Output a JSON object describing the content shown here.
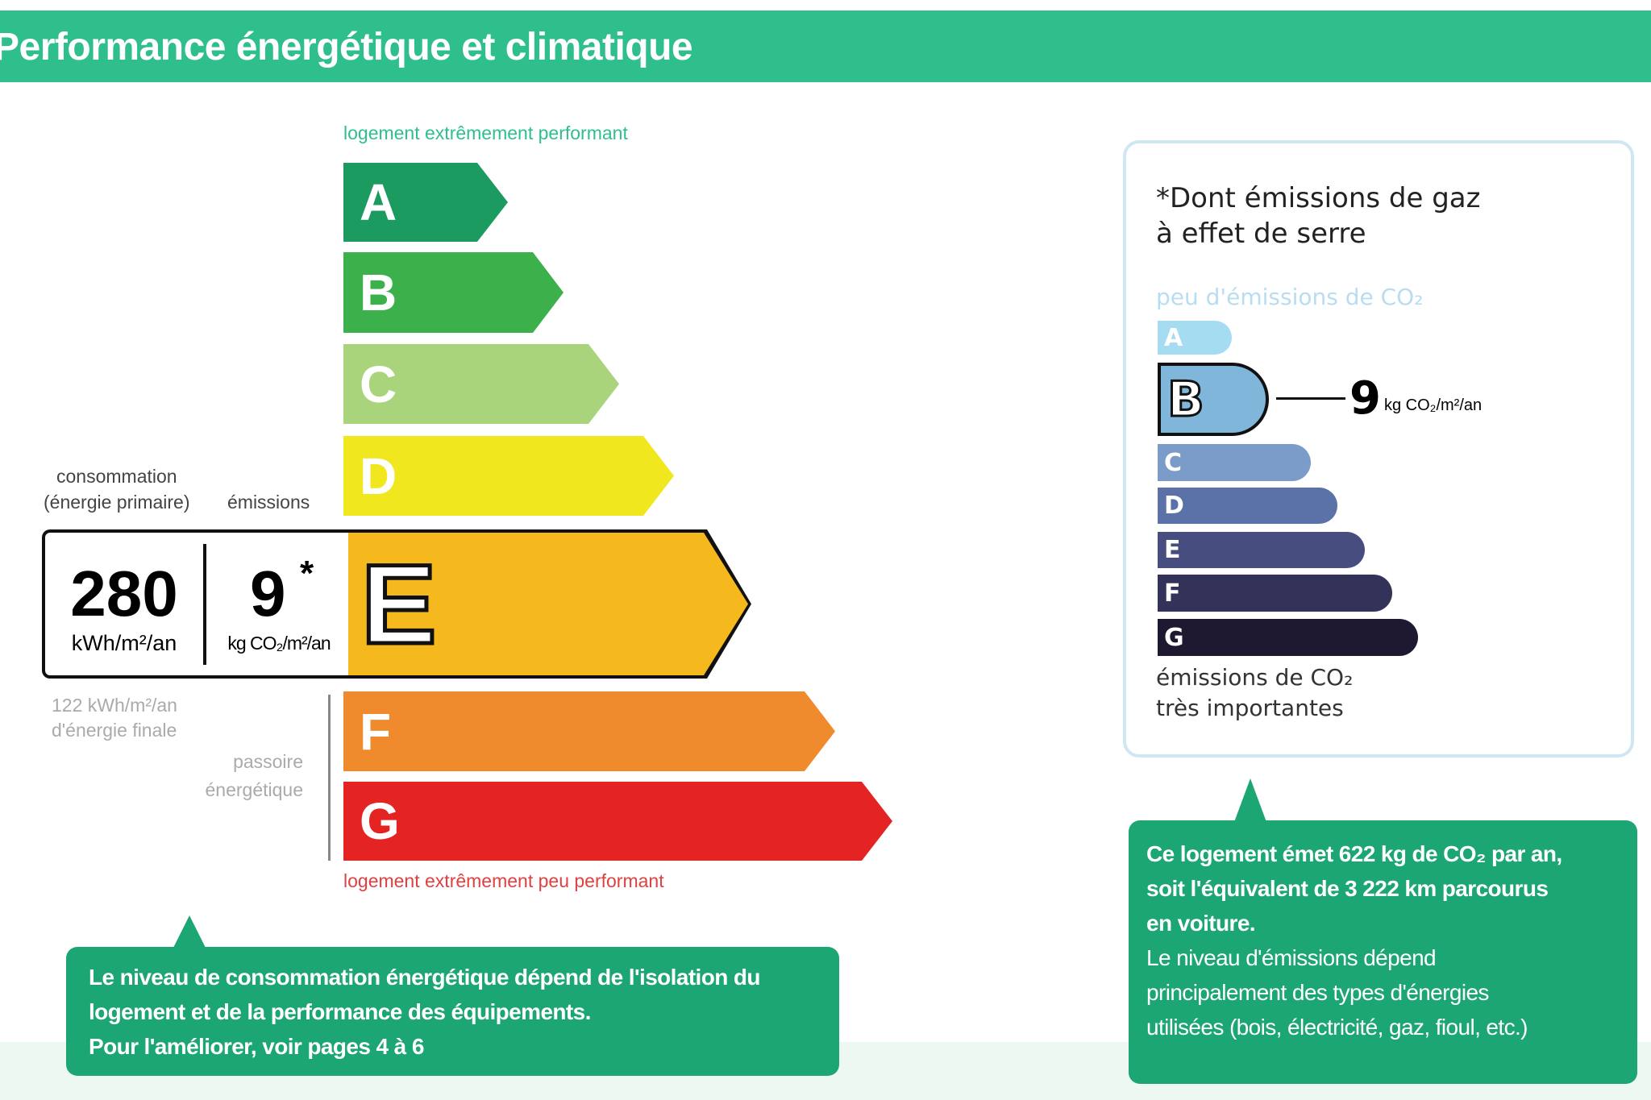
{
  "header": {
    "title": "Performance énergétique et climatique"
  },
  "energy": {
    "top_label": "logement extrêmement performant",
    "bottom_label": "logement extrêmement peu performant",
    "classes": [
      "A",
      "B",
      "C",
      "D",
      "E",
      "F",
      "G"
    ],
    "colors": [
      "#1b9b60",
      "#3cb04b",
      "#a9d47b",
      "#f1e71f",
      "#f5b81d",
      "#ef8a2d",
      "#e42422"
    ],
    "current_class": "E",
    "consumption_label_1": "consommation",
    "consumption_label_2": "(énergie primaire)",
    "emissions_label": "émissions",
    "consumption_value": "280",
    "consumption_unit": "kWh/m²/an",
    "emissions_value": "9",
    "emissions_star": "*",
    "emissions_unit": "kg CO₂/m²/an",
    "final_energy_1": "122 kWh/m²/an",
    "final_energy_2": "d'énergie finale",
    "passoire_1": "passoire",
    "passoire_2": "énergétique"
  },
  "climate": {
    "title_1": "*Dont émissions de gaz",
    "title_2": "à effet de serre",
    "top_label": "peu d'émissions de CO₂",
    "bottom_label_1": "émissions de CO₂",
    "bottom_label_2": "très importantes",
    "classes": [
      "A",
      "B",
      "C",
      "D",
      "E",
      "F",
      "G"
    ],
    "colors": [
      "#a6dcf1",
      "#80b6d9",
      "#7b9cc9",
      "#5a72a8",
      "#474e7f",
      "#33335a",
      "#1e1930"
    ],
    "current_class": "B",
    "value": "9",
    "unit": "kg CO₂/m²/an"
  },
  "callouts": {
    "left": [
      "Le niveau de consommation énergétique dépend de l'isolation du",
      "logement et de la performance des équipements.",
      "Pour l'améliorer, voir pages 4 à 6"
    ],
    "right": [
      "Ce logement émet 622 kg de CO₂ par an,",
      "soit l'équivalent de 3 222 km parcourus",
      "en voiture.",
      "Le niveau d'émissions dépend",
      "principalement des types d'énergies",
      "utilisées (bois, électricité, gaz, fioul, etc.)"
    ]
  }
}
